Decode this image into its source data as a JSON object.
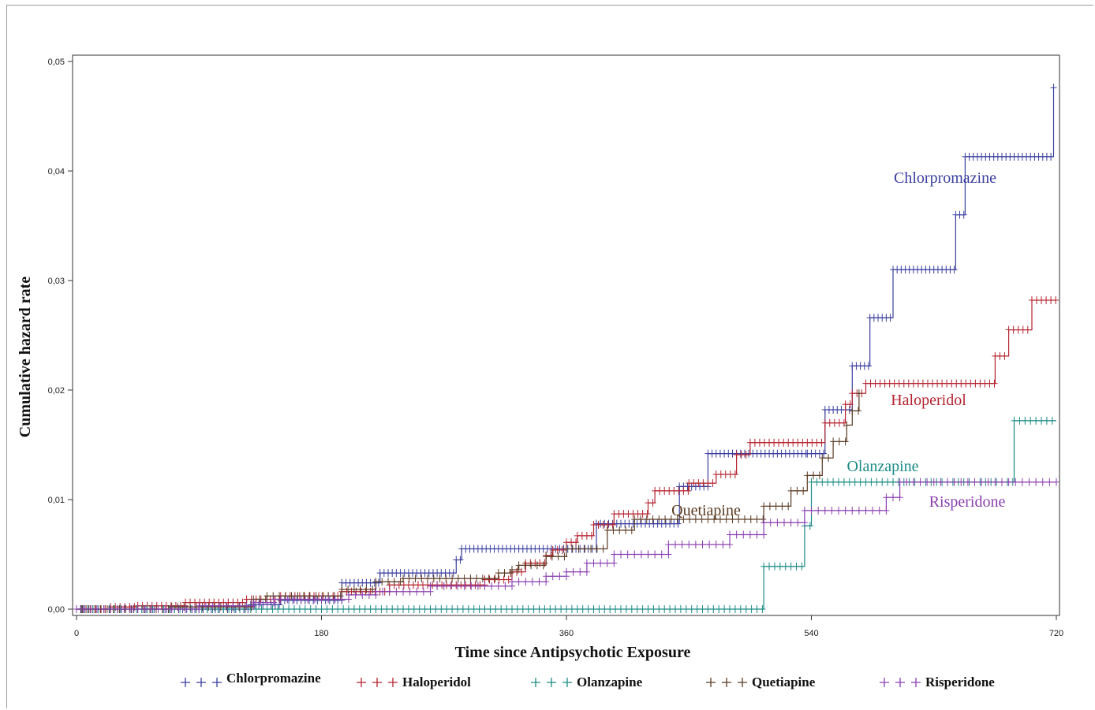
{
  "chart_data": {
    "type": "scatter",
    "xlabel": "Time since Antipsychotic Exposure",
    "ylabel": "Cumulative hazard rate",
    "xlim": [
      0,
      720
    ],
    "ylim": [
      0,
      0.05
    ],
    "x_ticks": [
      "0",
      "180",
      "360",
      "540",
      "720"
    ],
    "x_tick_values": [
      0,
      180,
      360,
      540,
      720
    ],
    "y_ticks": [
      "0,00",
      "0,01",
      "0,02",
      "0,03",
      "0,04",
      "0,05"
    ],
    "y_tick_values": [
      0,
      0.01,
      0.02,
      0.03,
      0.04,
      0.05
    ],
    "grid": false,
    "legend": "bottom",
    "series": [
      {
        "name": "Chlorpromazine",
        "color": "#3a3f9e",
        "annotation": "Chlorpromazine",
        "steps": [
          [
            0,
            0
          ],
          [
            128,
            0.0004
          ],
          [
            150,
            0.0008
          ],
          [
            195,
            0.0024
          ],
          [
            223,
            0.0033
          ],
          [
            279,
            0.0045
          ],
          [
            283,
            0.0055
          ],
          [
            382,
            0.0078
          ],
          [
            443,
            0.0112
          ],
          [
            464,
            0.0142
          ],
          [
            537,
            0.0142
          ],
          [
            550,
            0.0182
          ],
          [
            570,
            0.0222
          ],
          [
            583,
            0.0266
          ],
          [
            600,
            0.031
          ],
          [
            646,
            0.036
          ],
          [
            653,
            0.0413
          ],
          [
            718,
            0.0476
          ]
        ],
        "x_end": 718
      },
      {
        "name": "Haloperidol",
        "color": "#b5232f",
        "annotation": "Haloperidol",
        "steps": [
          [
            0,
            0
          ],
          [
            25,
            0.0002
          ],
          [
            45,
            0.0003
          ],
          [
            80,
            0.0006
          ],
          [
            125,
            0.0009
          ],
          [
            150,
            0.0012
          ],
          [
            195,
            0.0016
          ],
          [
            230,
            0.0022
          ],
          [
            300,
            0.0027
          ],
          [
            320,
            0.0034
          ],
          [
            330,
            0.0042
          ],
          [
            345,
            0.0049
          ],
          [
            350,
            0.0054
          ],
          [
            360,
            0.0061
          ],
          [
            368,
            0.0067
          ],
          [
            380,
            0.0077
          ],
          [
            395,
            0.0087
          ],
          [
            420,
            0.0097
          ],
          [
            425,
            0.0108
          ],
          [
            450,
            0.0115
          ],
          [
            470,
            0.0123
          ],
          [
            485,
            0.0141
          ],
          [
            495,
            0.0152
          ],
          [
            550,
            0.017
          ],
          [
            565,
            0.0187
          ],
          [
            570,
            0.0197
          ],
          [
            580,
            0.0206
          ],
          [
            675,
            0.0231
          ],
          [
            685,
            0.0255
          ],
          [
            702,
            0.0282
          ]
        ],
        "x_end": 720
      },
      {
        "name": "Olanzapine",
        "color": "#1a8b84",
        "annotation": "Olanzapine",
        "steps": [
          [
            0,
            0
          ],
          [
            505,
            0.0039
          ],
          [
            535,
            0.0076
          ],
          [
            540,
            0.0116
          ],
          [
            689,
            0.0172
          ]
        ],
        "x_end": 720
      },
      {
        "name": "Quetiapine",
        "color": "#5a3a22",
        "annotation": "Quetiapine",
        "steps": [
          [
            0,
            0
          ],
          [
            70,
            0.0002
          ],
          [
            130,
            0.0009
          ],
          [
            140,
            0.0012
          ],
          [
            195,
            0.0018
          ],
          [
            220,
            0.0025
          ],
          [
            240,
            0.0028
          ],
          [
            310,
            0.0033
          ],
          [
            320,
            0.0036
          ],
          [
            325,
            0.004
          ],
          [
            345,
            0.0048
          ],
          [
            360,
            0.0055
          ],
          [
            390,
            0.0072
          ],
          [
            410,
            0.0082
          ],
          [
            505,
            0.0094
          ],
          [
            525,
            0.0108
          ],
          [
            537,
            0.0122
          ],
          [
            548,
            0.0138
          ],
          [
            556,
            0.0153
          ],
          [
            566,
            0.0168
          ],
          [
            570,
            0.0181
          ],
          [
            575,
            0.0197
          ]
        ],
        "x_end": 575
      },
      {
        "name": "Risperidone",
        "color": "#8a3fb0",
        "annotation": "Risperidone",
        "steps": [
          [
            0,
            0
          ],
          [
            90,
            0.0003
          ],
          [
            130,
            0.0006
          ],
          [
            145,
            0.0009
          ],
          [
            200,
            0.0013
          ],
          [
            220,
            0.0016
          ],
          [
            260,
            0.0021
          ],
          [
            320,
            0.0025
          ],
          [
            345,
            0.003
          ],
          [
            360,
            0.0034
          ],
          [
            375,
            0.0042
          ],
          [
            395,
            0.005
          ],
          [
            435,
            0.0059
          ],
          [
            480,
            0.0068
          ],
          [
            505,
            0.0079
          ],
          [
            535,
            0.009
          ],
          [
            595,
            0.0102
          ],
          [
            605,
            0.0116
          ]
        ],
        "x_end": 720
      }
    ]
  }
}
